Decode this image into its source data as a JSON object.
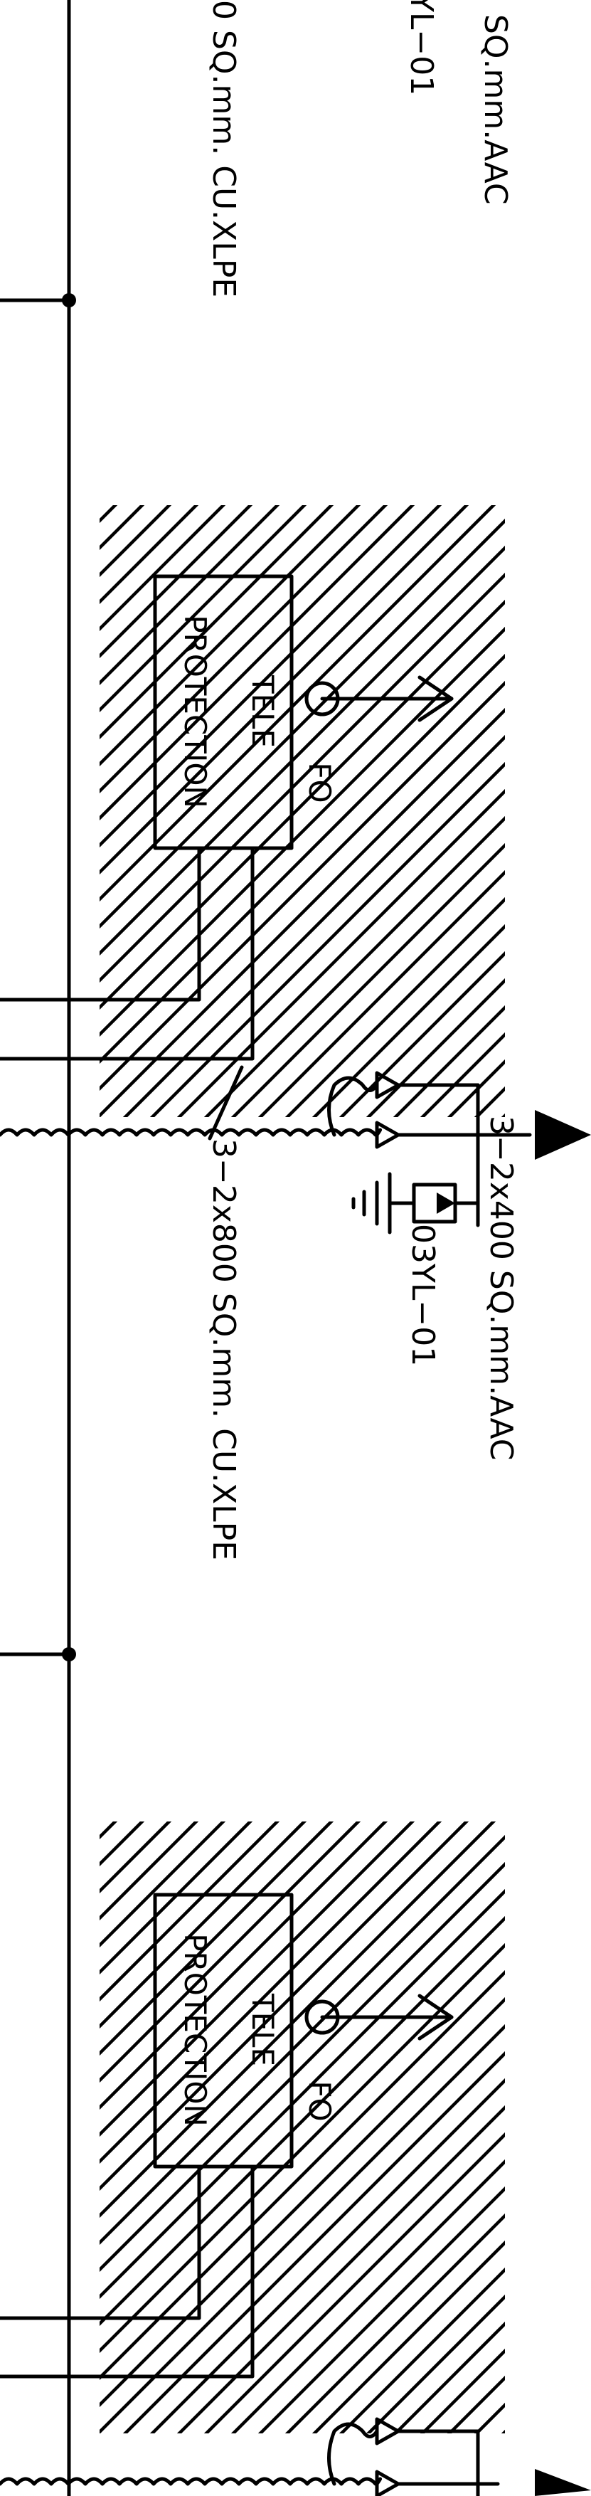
{
  "labels": {
    "top_aac_fragment": "SQ.mm.AAC",
    "top_yl_fragment": "YL−01",
    "top_cable_fragment": "0 SQ.mm.  CU.XLPE",
    "mid_aac": "3−2x400  SQ.mm.AAC",
    "mid_yl": "03YL−01",
    "mid_cable": "3−2x800  SQ.mm.  CU.XLPE"
  },
  "fo_blocks": [
    {
      "fo_label": "FO",
      "box_line1": "TELE",
      "box_line2": "PROTECTION"
    },
    {
      "fo_label": "FO",
      "box_line1": "TELE",
      "box_line2": "PROTECTION"
    }
  ],
  "colors": {
    "ink": "#000000",
    "paper": "#ffffff"
  }
}
